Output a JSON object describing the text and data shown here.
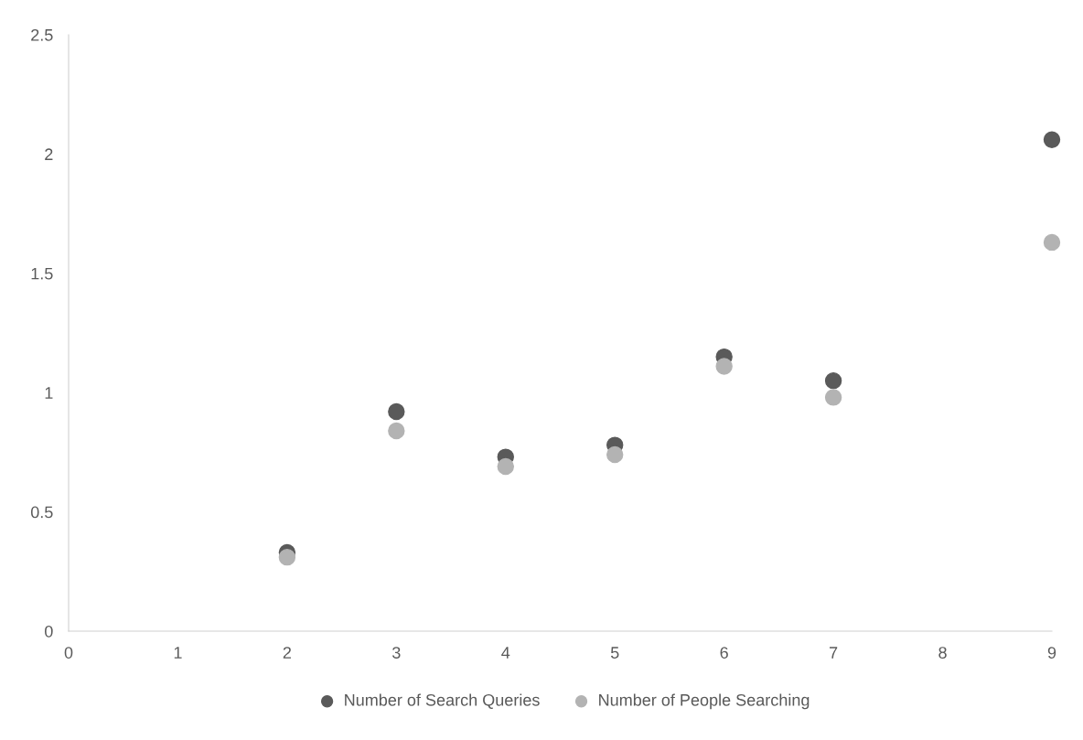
{
  "chart_data": {
    "type": "scatter",
    "x": [
      2,
      3,
      4,
      5,
      6,
      7,
      9
    ],
    "series": [
      {
        "name": "Number of Search Queries",
        "color": "#5a5a5a",
        "values": [
          0.33,
          0.92,
          0.73,
          0.78,
          1.15,
          1.05,
          2.06
        ]
      },
      {
        "name": "Number of People Searching",
        "color": "#b3b3b3",
        "values": [
          0.31,
          0.84,
          0.69,
          0.74,
          1.11,
          0.98,
          1.63
        ]
      }
    ],
    "xlim": [
      0,
      9
    ],
    "xticks": [
      0,
      1,
      2,
      3,
      4,
      5,
      6,
      7,
      8,
      9
    ],
    "ylim": [
      0,
      2.5
    ],
    "yticks": [
      0,
      0.5,
      1,
      1.5,
      2,
      2.5
    ],
    "marker": "circle",
    "legend": "bottom",
    "grid": false
  }
}
